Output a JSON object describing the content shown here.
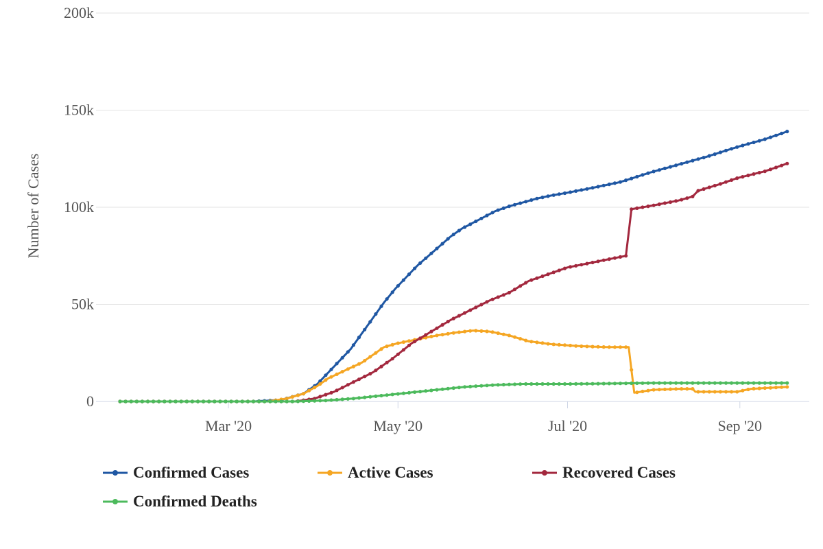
{
  "chart_data": {
    "type": "line",
    "ylabel": "Number of Cases",
    "yticks": [
      {
        "value": 0,
        "label": "0"
      },
      {
        "value": 50000,
        "label": "50k"
      },
      {
        "value": 100000,
        "label": "100k"
      },
      {
        "value": 150000,
        "label": "150k"
      },
      {
        "value": 200000,
        "label": "200k"
      }
    ],
    "ylim": [
      0,
      200000
    ],
    "xlim": [
      "2020-01-22",
      "2020-09-24"
    ],
    "xticks": [
      {
        "date": "2020-03-01",
        "label": "Mar '20"
      },
      {
        "date": "2020-05-01",
        "label": "May '20"
      },
      {
        "date": "2020-07-01",
        "label": "Jul '20"
      },
      {
        "date": "2020-09-01",
        "label": "Sep '20"
      }
    ],
    "grid": "horizontal",
    "legend_position": "bottom",
    "series": [
      {
        "name": "Confirmed Cases",
        "color": "#1f57a3",
        "points": [
          [
            "2020-01-22",
            0
          ],
          [
            "2020-03-10",
            0
          ],
          [
            "2020-03-20",
            800
          ],
          [
            "2020-03-28",
            4000
          ],
          [
            "2020-04-02",
            9000
          ],
          [
            "2020-04-06",
            15000
          ],
          [
            "2020-04-10",
            21000
          ],
          [
            "2020-04-14",
            27000
          ],
          [
            "2020-04-18",
            35000
          ],
          [
            "2020-04-22",
            43000
          ],
          [
            "2020-04-26",
            51000
          ],
          [
            "2020-04-30",
            58000
          ],
          [
            "2020-05-04",
            64000
          ],
          [
            "2020-05-08",
            70000
          ],
          [
            "2020-05-12",
            75000
          ],
          [
            "2020-05-16",
            80000
          ],
          [
            "2020-05-20",
            85000
          ],
          [
            "2020-05-24",
            89000
          ],
          [
            "2020-05-28",
            92000
          ],
          [
            "2020-06-01",
            95000
          ],
          [
            "2020-06-05",
            98000
          ],
          [
            "2020-06-10",
            100500
          ],
          [
            "2020-06-15",
            102500
          ],
          [
            "2020-06-20",
            104500
          ],
          [
            "2020-06-25",
            106000
          ],
          [
            "2020-07-01",
            107500
          ],
          [
            "2020-07-10",
            110000
          ],
          [
            "2020-07-20",
            113000
          ],
          [
            "2020-07-31",
            118000
          ],
          [
            "2020-08-10",
            122000
          ],
          [
            "2020-08-20",
            126000
          ],
          [
            "2020-08-31",
            131000
          ],
          [
            "2020-09-10",
            135000
          ],
          [
            "2020-09-18",
            139000
          ]
        ]
      },
      {
        "name": "Active Cases",
        "color": "#f5a623",
        "points": [
          [
            "2020-01-22",
            0
          ],
          [
            "2020-03-15",
            0
          ],
          [
            "2020-03-22",
            1500
          ],
          [
            "2020-03-28",
            4000
          ],
          [
            "2020-04-02",
            8000
          ],
          [
            "2020-04-06",
            12000
          ],
          [
            "2020-04-12",
            16000
          ],
          [
            "2020-04-18",
            20000
          ],
          [
            "2020-04-22",
            24000
          ],
          [
            "2020-04-26",
            28000
          ],
          [
            "2020-05-01",
            30000
          ],
          [
            "2020-05-08",
            32000
          ],
          [
            "2020-05-15",
            34000
          ],
          [
            "2020-05-22",
            35500
          ],
          [
            "2020-05-28",
            36500
          ],
          [
            "2020-06-03",
            36000
          ],
          [
            "2020-06-10",
            34000
          ],
          [
            "2020-06-17",
            31000
          ],
          [
            "2020-06-25",
            29500
          ],
          [
            "2020-07-05",
            28500
          ],
          [
            "2020-07-15",
            28000
          ],
          [
            "2020-07-23",
            28000
          ],
          [
            "2020-07-25",
            4500
          ],
          [
            "2020-08-01",
            6000
          ],
          [
            "2020-08-10",
            6500
          ],
          [
            "2020-08-15",
            6500
          ],
          [
            "2020-08-16",
            5000
          ],
          [
            "2020-08-31",
            5000
          ],
          [
            "2020-09-05",
            6500
          ],
          [
            "2020-09-18",
            7500
          ]
        ]
      },
      {
        "name": "Recovered Cases",
        "color": "#a3283e",
        "points": [
          [
            "2020-01-22",
            0
          ],
          [
            "2020-03-25",
            0
          ],
          [
            "2020-04-01",
            1500
          ],
          [
            "2020-04-08",
            5000
          ],
          [
            "2020-04-15",
            10000
          ],
          [
            "2020-04-22",
            15000
          ],
          [
            "2020-04-29",
            22000
          ],
          [
            "2020-05-06",
            30000
          ],
          [
            "2020-05-13",
            36000
          ],
          [
            "2020-05-20",
            42000
          ],
          [
            "2020-05-27",
            47000
          ],
          [
            "2020-06-03",
            52000
          ],
          [
            "2020-06-10",
            56000
          ],
          [
            "2020-06-17",
            62000
          ],
          [
            "2020-06-25",
            66000
          ],
          [
            "2020-07-01",
            69000
          ],
          [
            "2020-07-08",
            71000
          ],
          [
            "2020-07-15",
            73000
          ],
          [
            "2020-07-22",
            75000
          ],
          [
            "2020-07-24",
            99000
          ],
          [
            "2020-08-01",
            101000
          ],
          [
            "2020-08-10",
            103500
          ],
          [
            "2020-08-15",
            105500
          ],
          [
            "2020-08-17",
            108500
          ],
          [
            "2020-08-25",
            112000
          ],
          [
            "2020-08-31",
            115000
          ],
          [
            "2020-09-10",
            118500
          ],
          [
            "2020-09-18",
            122500
          ]
        ]
      },
      {
        "name": "Confirmed Deaths",
        "color": "#4cba5c",
        "points": [
          [
            "2020-01-22",
            0
          ],
          [
            "2020-03-25",
            0
          ],
          [
            "2020-04-05",
            500
          ],
          [
            "2020-04-15",
            1500
          ],
          [
            "2020-04-25",
            3000
          ],
          [
            "2020-05-05",
            4500
          ],
          [
            "2020-05-15",
            6000
          ],
          [
            "2020-05-25",
            7500
          ],
          [
            "2020-06-05",
            8500
          ],
          [
            "2020-06-15",
            9000
          ],
          [
            "2020-06-30",
            9000
          ],
          [
            "2020-07-15",
            9200
          ],
          [
            "2020-07-31",
            9500
          ],
          [
            "2020-08-31",
            9500
          ],
          [
            "2020-09-18",
            9500
          ]
        ]
      }
    ]
  }
}
